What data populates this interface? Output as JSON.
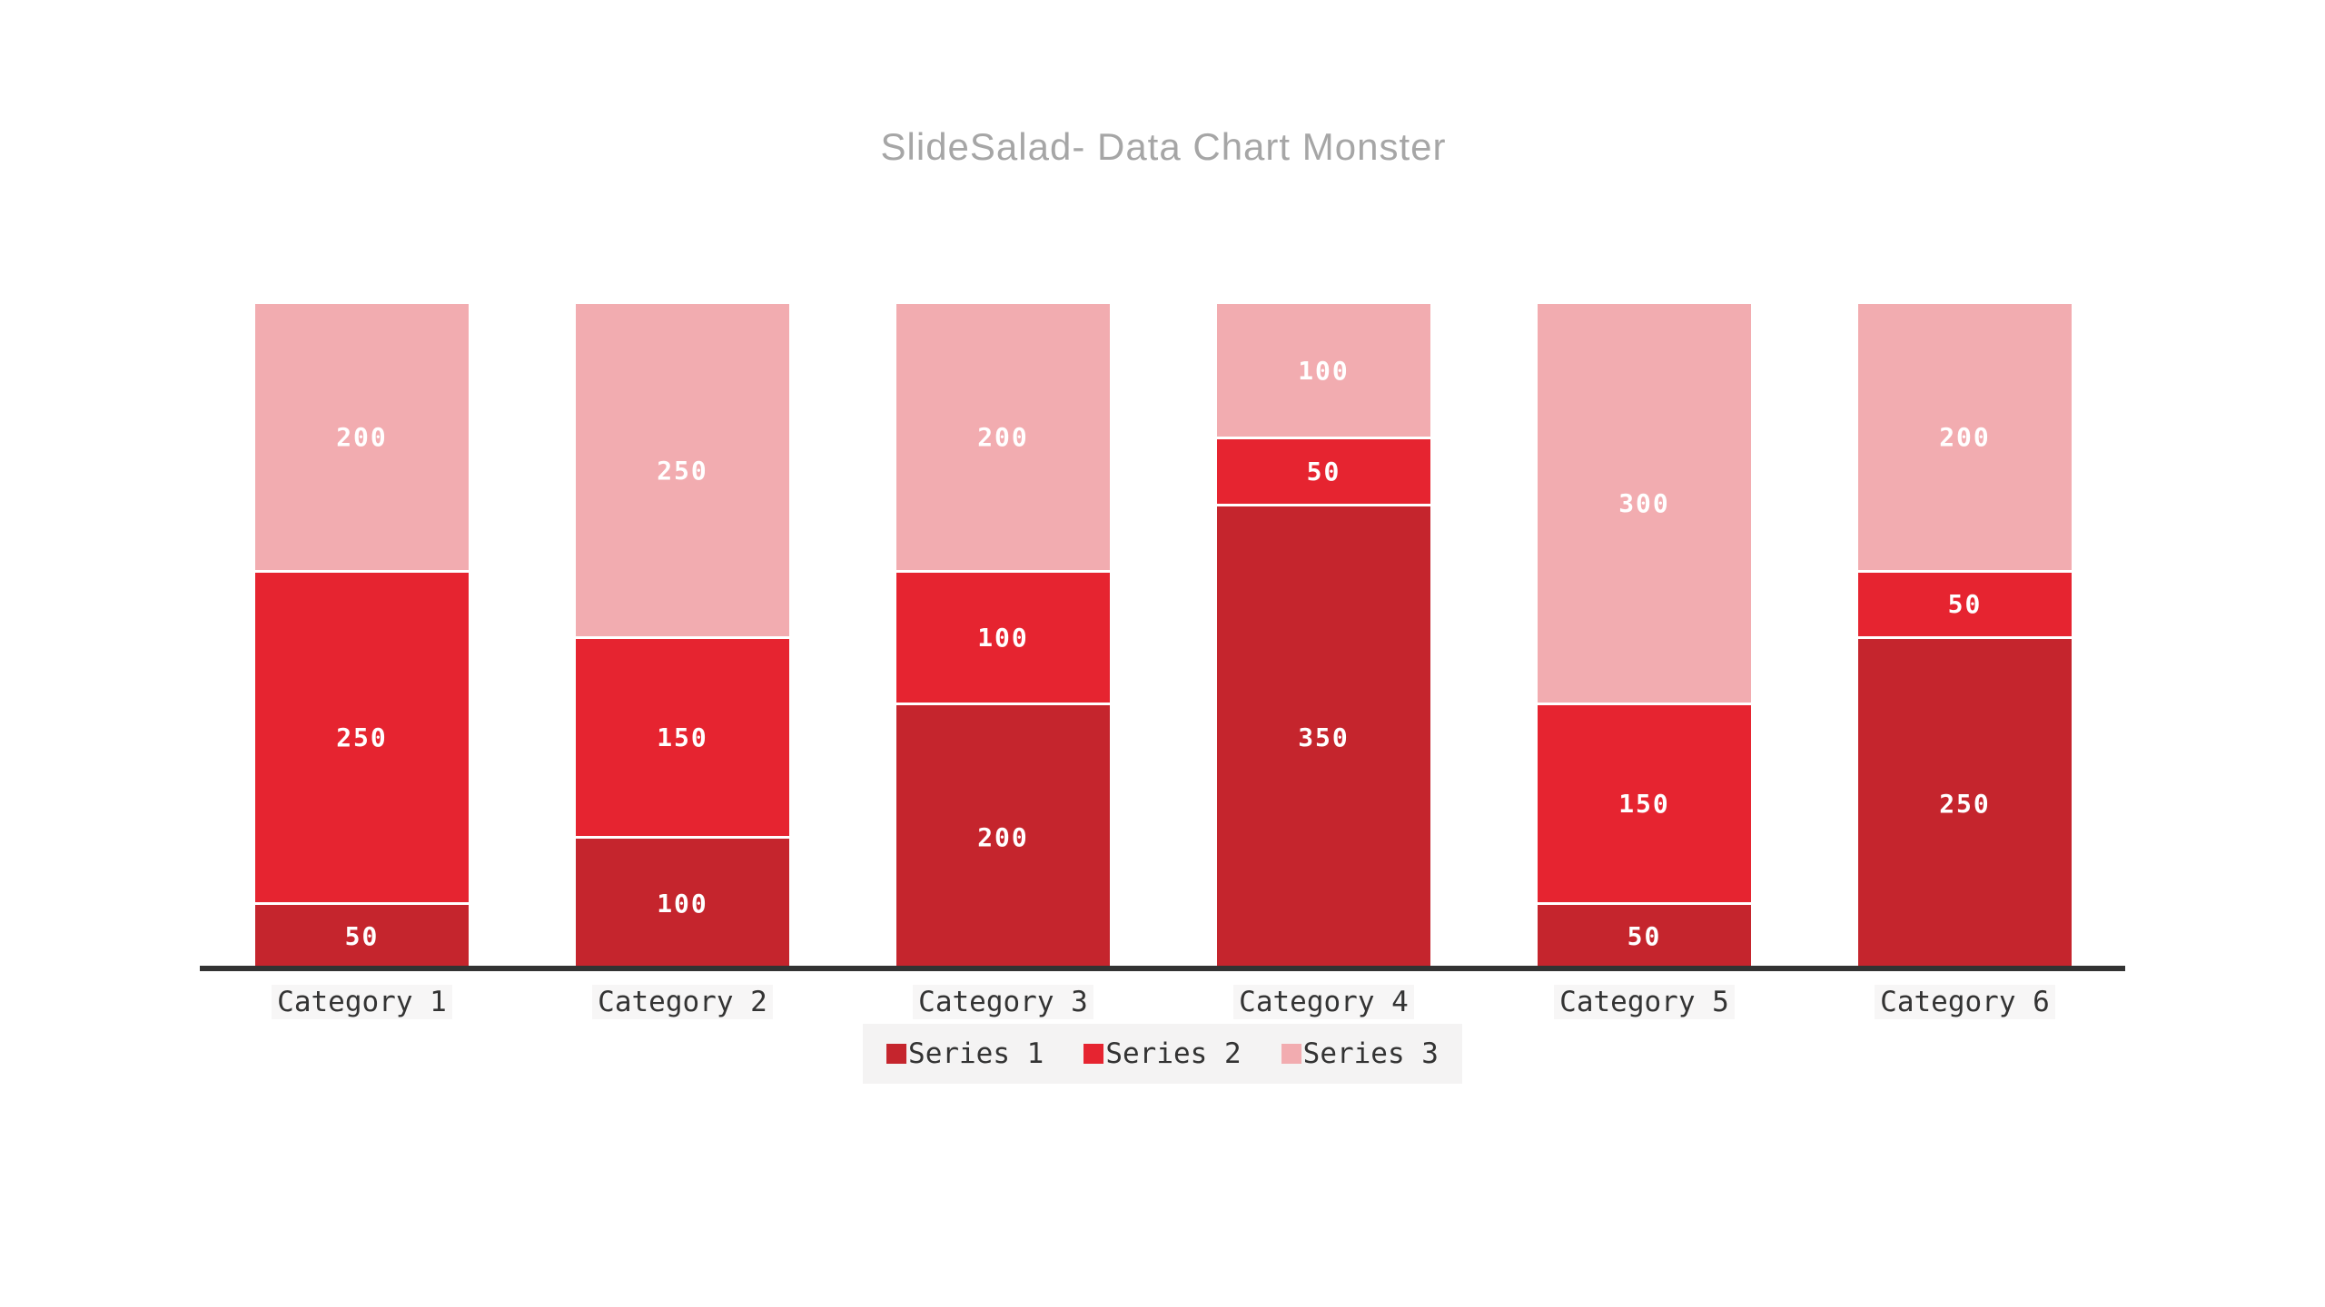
{
  "title": {
    "text": "SlideSalad- Data Chart Monster",
    "color": "#A6A6A6"
  },
  "chart_data": {
    "type": "bar",
    "stacked": true,
    "title": "SlideSalad- Data Chart Monster",
    "categories": [
      "Category 1",
      "Category 2",
      "Category 3",
      "Category 4",
      "Category 5",
      "Category 6"
    ],
    "series": [
      {
        "name": "Series 1",
        "color": "#C5252D",
        "values": [
          50,
          100,
          200,
          350,
          50,
          250
        ]
      },
      {
        "name": "Series 2",
        "color": "#E62430",
        "values": [
          250,
          150,
          100,
          50,
          150,
          50
        ]
      },
      {
        "name": "Series 3",
        "color": "#F2ACB0",
        "values": [
          200,
          250,
          200,
          100,
          300,
          200
        ]
      }
    ],
    "stack_total_per_category": 500,
    "ylim": [
      0,
      500
    ],
    "xlabel": "",
    "ylabel": "",
    "gridlines": false,
    "y_axis_visible": false,
    "value_label_color": "#FFFFFF",
    "segment_divider_color": "#FFFFFF",
    "legend_position": "bottom",
    "legend_background": "#F4F3F3",
    "axis_line_color": "#333333",
    "text_color": "#333333",
    "background_color": "#FFFFFF"
  }
}
